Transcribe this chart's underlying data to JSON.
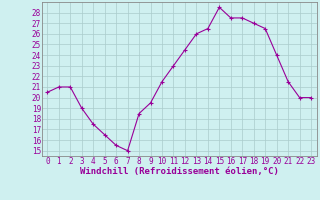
{
  "x": [
    0,
    1,
    2,
    3,
    4,
    5,
    6,
    7,
    8,
    9,
    10,
    11,
    12,
    13,
    14,
    15,
    16,
    17,
    18,
    19,
    20,
    21,
    22,
    23
  ],
  "y": [
    20.5,
    21.0,
    21.0,
    19.0,
    17.5,
    16.5,
    15.5,
    15.0,
    18.5,
    19.5,
    21.5,
    23.0,
    24.5,
    26.0,
    26.5,
    28.5,
    27.5,
    27.5,
    27.0,
    26.5,
    24.0,
    21.5,
    20.0,
    20.0
  ],
  "line_color": "#990099",
  "marker": "+",
  "marker_size": 3,
  "bg_color": "#cff0f0",
  "grid_color": "#aacccc",
  "xlabel": "Windchill (Refroidissement éolien,°C)",
  "yticks": [
    15,
    16,
    17,
    18,
    19,
    20,
    21,
    22,
    23,
    24,
    25,
    26,
    27,
    28
  ],
  "ylim": [
    14.5,
    29.0
  ],
  "xlim": [
    -0.5,
    23.5
  ],
  "xticks": [
    0,
    1,
    2,
    3,
    4,
    5,
    6,
    7,
    8,
    9,
    10,
    11,
    12,
    13,
    14,
    15,
    16,
    17,
    18,
    19,
    20,
    21,
    22,
    23
  ],
  "tick_fontsize": 5.5,
  "xlabel_fontsize": 6.5,
  "spine_color": "#888888",
  "line_width": 0.8
}
